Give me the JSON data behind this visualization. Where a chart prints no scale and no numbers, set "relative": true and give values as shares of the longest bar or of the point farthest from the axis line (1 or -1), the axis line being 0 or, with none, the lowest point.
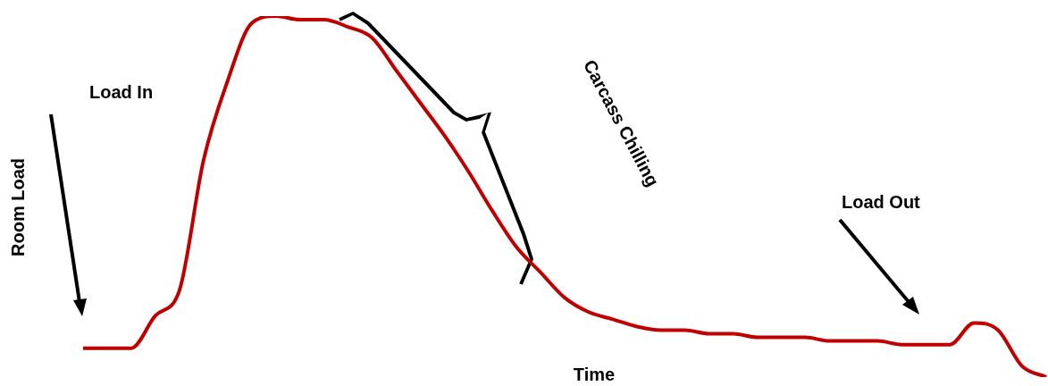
{
  "chart_data": {
    "type": "line",
    "relative": true,
    "xlabel": "Time",
    "ylabel": "Room Load",
    "annotations": [
      "Load In",
      "Carcass Chilling",
      "Load Out"
    ],
    "categories": [
      null,
      null,
      null,
      null,
      null,
      null,
      null,
      null,
      null,
      null,
      null,
      null,
      null,
      null,
      null,
      null,
      null,
      null,
      null,
      null,
      null,
      null,
      null,
      null,
      null,
      null,
      null,
      null,
      null,
      null,
      null,
      null,
      null,
      null,
      null,
      null,
      null,
      null,
      null,
      null,
      null
    ],
    "series": [
      {
        "color": "#c00000",
        "values": [
          0.08,
          0.08,
          0.08,
          0.17,
          0.24,
          0.6,
          0.82,
          0.98,
          1,
          0.99,
          0.99,
          0.97,
          0.94,
          0.85,
          0.76,
          0.67,
          0.57,
          0.46,
          0.36,
          0.29,
          0.22,
          0.18,
          0.16,
          0.14,
          0.13,
          0.13,
          0.12,
          0.12,
          0.11,
          0.11,
          0.11,
          0.1,
          0.1,
          0.1,
          0.09,
          0.09,
          0.09,
          0.15,
          0.13,
          0.03,
          0
        ]
      }
    ]
  }
}
